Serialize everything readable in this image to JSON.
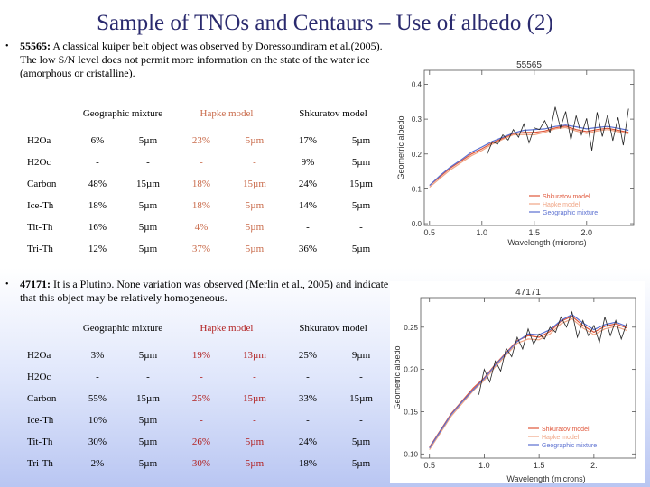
{
  "slide": {
    "title": "Sample of TNOs and Centaurs – Use of albedo (2)"
  },
  "section1": {
    "bullet_name": "55565:",
    "bullet_text": " A classical kuiper belt object was observed by Doressoundiram et al.(2005). The low S/N level does not permit more information on the state of the water ice (amorphous or cristalline).",
    "headers": {
      "geo": "Geographic mixture",
      "hapke": "Hapke model",
      "shk": "Shkuratov model"
    },
    "rows": [
      [
        "H2Oa",
        "6%",
        "5µm",
        "23%",
        "5µm",
        "17%",
        "5µm"
      ],
      [
        "H2Oc",
        "-",
        "-",
        "-",
        "-",
        "9%",
        "5µm"
      ],
      [
        "Carbon",
        "48%",
        "15µm",
        "18%",
        "15µm",
        "24%",
        "15µm"
      ],
      [
        "Ice-Th",
        "18%",
        "5µm",
        "18%",
        "5µm",
        "14%",
        "5µm"
      ],
      [
        "Tit-Th",
        "16%",
        "5µm",
        "4%",
        "5µm",
        "-",
        "-"
      ],
      [
        "Tri-Th",
        "12%",
        "5µm",
        "37%",
        "5µm",
        "36%",
        "5µm"
      ]
    ]
  },
  "section2": {
    "bullet_name": "47171:",
    "bullet_text": " It is a Plutino. None variation was observed (Merlin et al., 2005) and indicate that this object may be relatively homogeneous.",
    "headers": {
      "geo": "Geographic mixture",
      "hapke": "Hapke model",
      "shk": "Shkuratov model"
    },
    "rows": [
      [
        "H2Oa",
        "3%",
        "5µm",
        "19%",
        "13µm",
        "25%",
        "9µm"
      ],
      [
        "H2Oc",
        "-",
        "-",
        "-",
        "-",
        "-",
        "-"
      ],
      [
        "Carbon",
        "55%",
        "15µm",
        "25%",
        "15µm",
        "33%",
        "15µm"
      ],
      [
        "Ice-Th",
        "10%",
        "5µm",
        "-",
        "-",
        "-",
        "-"
      ],
      [
        "Tit-Th",
        "30%",
        "5µm",
        "26%",
        "5µm",
        "24%",
        "5µm"
      ],
      [
        "Tri-Th",
        "2%",
        "5µm",
        "30%",
        "5µm",
        "18%",
        "5µm"
      ]
    ]
  },
  "chart_data": [
    {
      "type": "line",
      "title": "55565",
      "xlabel": "Wavelength (microns)",
      "ylabel": "Geometric albedo",
      "xlim": [
        0.45,
        2.45
      ],
      "ylim": [
        -0.005,
        0.44
      ],
      "xticks": [
        0.5,
        1.0,
        1.5,
        2.0
      ],
      "xtick_labels": [
        "0.5",
        "1.0",
        "1.5",
        "2.0"
      ],
      "yticks": [
        0.0,
        0.1,
        0.2,
        0.3,
        0.4
      ],
      "ytick_labels": [
        "0.0",
        "0.1",
        "0.2",
        "0.3",
        "0.4"
      ],
      "legend": [
        "Shkuratov model",
        "Hapke model",
        "Geographic mixture"
      ],
      "legend_colors": [
        "#e0563a",
        "#f0a585",
        "#5a6fd0"
      ],
      "series": [
        {
          "name": "Shkuratov model",
          "color": "#e0563a",
          "x": [
            0.5,
            0.6,
            0.7,
            0.8,
            0.9,
            1.0,
            1.1,
            1.2,
            1.3,
            1.4,
            1.5,
            1.6,
            1.7,
            1.8,
            1.9,
            2.0,
            2.1,
            2.2,
            2.3,
            2.4
          ],
          "y": [
            0.11,
            0.135,
            0.16,
            0.18,
            0.2,
            0.215,
            0.232,
            0.245,
            0.258,
            0.262,
            0.262,
            0.266,
            0.275,
            0.28,
            0.27,
            0.264,
            0.27,
            0.274,
            0.268,
            0.262
          ]
        },
        {
          "name": "Hapke model",
          "color": "#f0a585",
          "x": [
            0.5,
            0.6,
            0.7,
            0.8,
            0.9,
            1.0,
            1.1,
            1.2,
            1.3,
            1.4,
            1.5,
            1.6,
            1.7,
            1.8,
            1.9,
            2.0,
            2.1,
            2.2,
            2.3,
            2.4
          ],
          "y": [
            0.105,
            0.13,
            0.155,
            0.175,
            0.195,
            0.21,
            0.228,
            0.242,
            0.255,
            0.256,
            0.255,
            0.262,
            0.272,
            0.276,
            0.266,
            0.259,
            0.266,
            0.27,
            0.264,
            0.258
          ]
        },
        {
          "name": "Geographic mixture",
          "color": "#5a6fd0",
          "x": [
            0.5,
            0.6,
            0.7,
            0.8,
            0.9,
            1.0,
            1.1,
            1.2,
            1.3,
            1.4,
            1.5,
            1.6,
            1.7,
            1.8,
            1.9,
            2.0,
            2.1,
            2.2,
            2.3,
            2.4
          ],
          "y": [
            0.11,
            0.138,
            0.163,
            0.183,
            0.205,
            0.22,
            0.236,
            0.248,
            0.26,
            0.268,
            0.27,
            0.272,
            0.279,
            0.283,
            0.278,
            0.272,
            0.276,
            0.279,
            0.274,
            0.268
          ]
        },
        {
          "name": "Observed spectrum",
          "color": "#222222",
          "x": [
            1.05,
            1.1,
            1.15,
            1.2,
            1.25,
            1.3,
            1.35,
            1.4,
            1.45,
            1.5,
            1.55,
            1.6,
            1.65,
            1.7,
            1.75,
            1.8,
            1.85,
            1.9,
            1.95,
            2.0,
            2.05,
            2.1,
            2.15,
            2.2,
            2.25,
            2.3,
            2.35,
            2.4
          ],
          "y": [
            0.2,
            0.235,
            0.228,
            0.255,
            0.24,
            0.27,
            0.248,
            0.286,
            0.232,
            0.275,
            0.27,
            0.296,
            0.262,
            0.335,
            0.275,
            0.322,
            0.24,
            0.31,
            0.255,
            0.302,
            0.21,
            0.32,
            0.25,
            0.312,
            0.238,
            0.305,
            0.225,
            0.33
          ]
        }
      ]
    },
    {
      "type": "line",
      "title": "47171",
      "xlabel": "Wavelength (microns)",
      "ylabel": "Geometric albedo",
      "xlim": [
        0.42,
        2.38
      ],
      "ylim": [
        0.095,
        0.285
      ],
      "xticks": [
        0.5,
        1.0,
        1.5,
        2.0
      ],
      "xtick_labels": [
        "0.5",
        "1.0",
        "1.5",
        "2."
      ],
      "yticks": [
        0.1,
        0.15,
        0.2,
        0.25
      ],
      "ytick_labels": [
        "0.10",
        "0.15",
        "0.20",
        "0.25"
      ],
      "legend": [
        "Shkuratov model",
        "Hapke model",
        "Geographic mixture"
      ],
      "legend_colors": [
        "#e0563a",
        "#f0a585",
        "#5a6fd0"
      ],
      "series": [
        {
          "name": "Shkuratov model",
          "color": "#e0563a",
          "x": [
            0.5,
            0.6,
            0.7,
            0.8,
            0.9,
            1.0,
            1.1,
            1.2,
            1.3,
            1.4,
            1.5,
            1.6,
            1.7,
            1.8,
            1.9,
            2.0,
            2.1,
            2.2,
            2.3
          ],
          "y": [
            0.108,
            0.128,
            0.148,
            0.163,
            0.178,
            0.19,
            0.206,
            0.22,
            0.234,
            0.24,
            0.238,
            0.245,
            0.257,
            0.263,
            0.252,
            0.244,
            0.251,
            0.254,
            0.249
          ]
        },
        {
          "name": "Hapke model",
          "color": "#f0a585",
          "x": [
            0.5,
            0.6,
            0.7,
            0.8,
            0.9,
            1.0,
            1.1,
            1.2,
            1.3,
            1.4,
            1.5,
            1.6,
            1.7,
            1.8,
            1.9,
            2.0,
            2.1,
            2.2,
            2.3
          ],
          "y": [
            0.105,
            0.125,
            0.145,
            0.16,
            0.175,
            0.187,
            0.203,
            0.217,
            0.231,
            0.236,
            0.235,
            0.242,
            0.254,
            0.26,
            0.249,
            0.241,
            0.248,
            0.251,
            0.246
          ]
        },
        {
          "name": "Geographic mixture",
          "color": "#5a6fd0",
          "x": [
            0.5,
            0.6,
            0.7,
            0.8,
            0.9,
            1.0,
            1.1,
            1.2,
            1.3,
            1.4,
            1.5,
            1.6,
            1.7,
            1.8,
            1.9,
            2.0,
            2.1,
            2.2,
            2.3
          ],
          "y": [
            0.107,
            0.127,
            0.147,
            0.162,
            0.176,
            0.189,
            0.205,
            0.219,
            0.233,
            0.242,
            0.241,
            0.247,
            0.258,
            0.265,
            0.255,
            0.247,
            0.253,
            0.256,
            0.251
          ]
        },
        {
          "name": "Observed spectrum",
          "color": "#222222",
          "x": [
            0.95,
            1.0,
            1.05,
            1.1,
            1.15,
            1.2,
            1.25,
            1.3,
            1.35,
            1.4,
            1.45,
            1.5,
            1.55,
            1.6,
            1.65,
            1.7,
            1.75,
            1.8,
            1.85,
            1.9,
            1.95,
            2.0,
            2.05,
            2.1,
            2.15,
            2.2,
            2.25,
            2.3
          ],
          "y": [
            0.17,
            0.2,
            0.185,
            0.21,
            0.198,
            0.225,
            0.215,
            0.238,
            0.224,
            0.248,
            0.23,
            0.242,
            0.236,
            0.25,
            0.244,
            0.262,
            0.25,
            0.268,
            0.238,
            0.258,
            0.24,
            0.252,
            0.232,
            0.262,
            0.24,
            0.258,
            0.236,
            0.255
          ]
        }
      ]
    }
  ]
}
